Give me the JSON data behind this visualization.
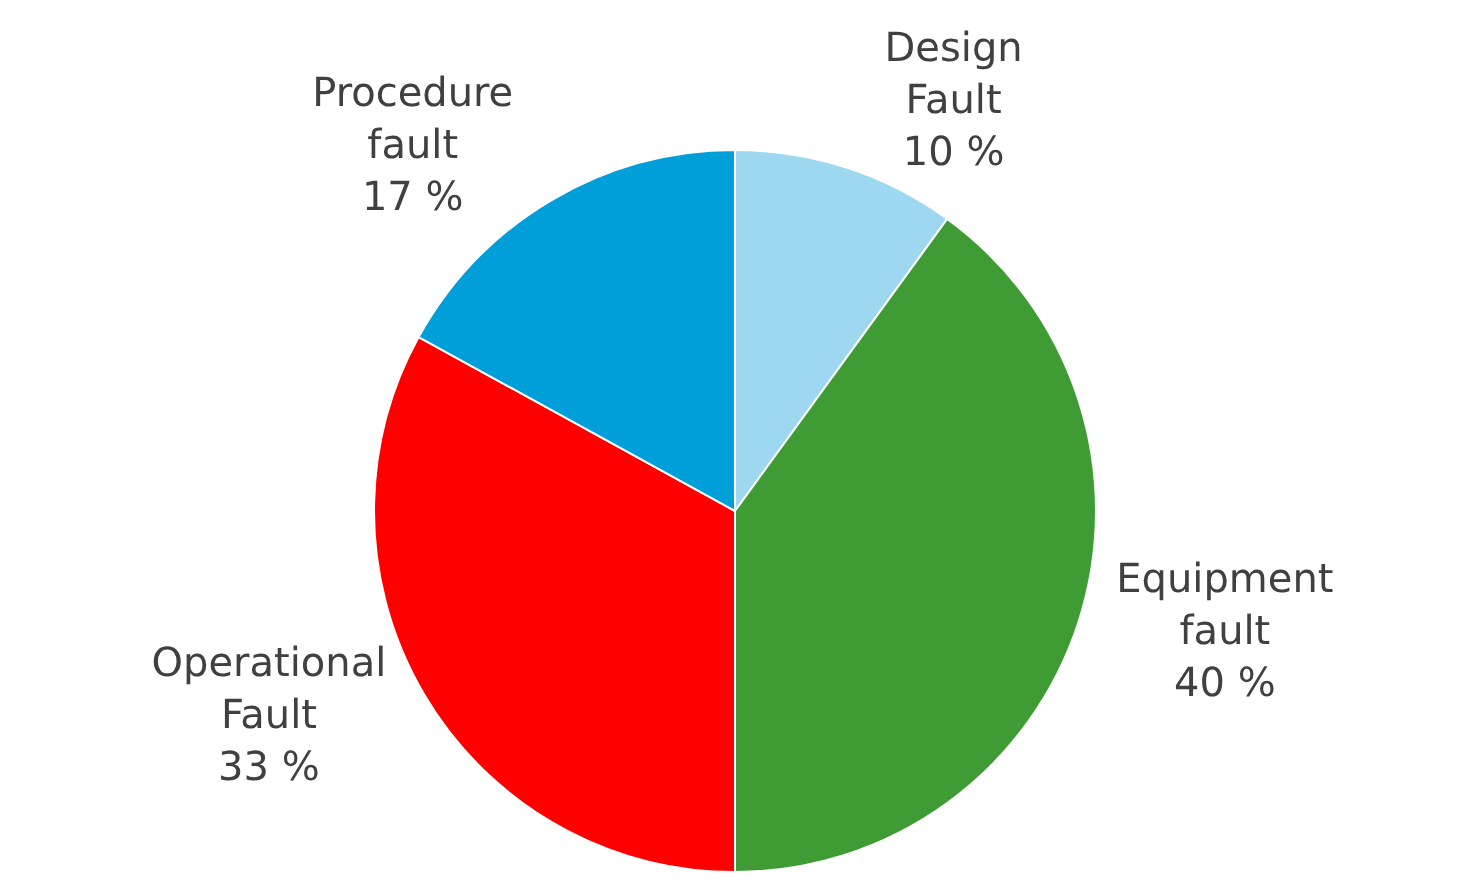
{
  "chart_data": {
    "type": "pie",
    "categories": [
      "Design Fault",
      "Equipment fault",
      "Operational Fault",
      "Procedure fault"
    ],
    "values": [
      10,
      40,
      33,
      17
    ],
    "value_labels": [
      "10 %",
      "40 %",
      "33 %",
      "17 %"
    ],
    "colors": [
      "#9dd7f0",
      "#3f9c35",
      "#ff0000",
      "#009fda"
    ],
    "legend": false
  }
}
